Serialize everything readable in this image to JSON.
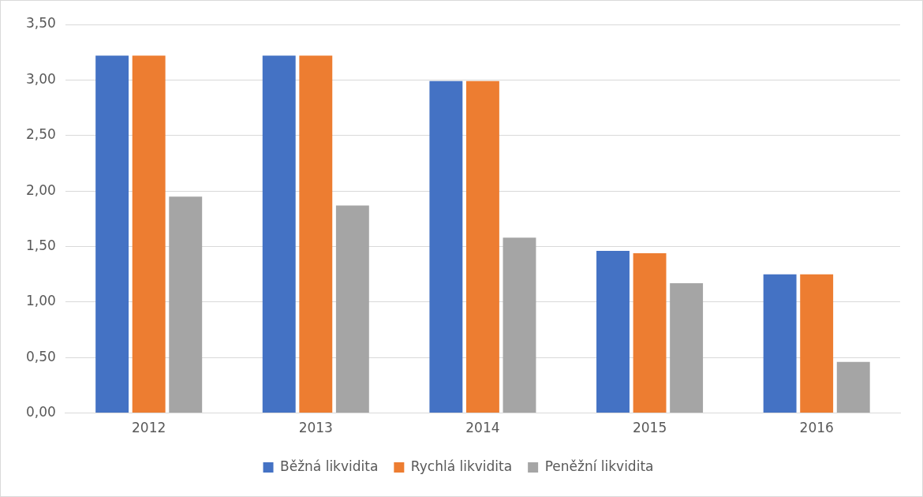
{
  "chart_data": {
    "type": "bar",
    "categories": [
      "2012",
      "2013",
      "2014",
      "2015",
      "2016"
    ],
    "series": [
      {
        "name": "Běžná likvidita",
        "color": "#4472c4",
        "values": [
          3.22,
          3.22,
          2.99,
          1.46,
          1.25
        ]
      },
      {
        "name": "Rychlá likvidita",
        "color": "#ed7d31",
        "values": [
          3.22,
          3.22,
          2.99,
          1.44,
          1.25
        ]
      },
      {
        "name": "Peněžní likvidita",
        "color": "#a5a5a5",
        "values": [
          1.95,
          1.87,
          1.58,
          1.17,
          0.46
        ]
      }
    ],
    "ylim": [
      0,
      3.5
    ],
    "yticks": [
      {
        "value": 0,
        "label": "0,00"
      },
      {
        "value": 0.5,
        "label": "0,50"
      },
      {
        "value": 1,
        "label": "1,00"
      },
      {
        "value": 1.5,
        "label": "1,50"
      },
      {
        "value": 2,
        "label": "2,00"
      },
      {
        "value": 2.5,
        "label": "2,50"
      },
      {
        "value": 3,
        "label": "3,00"
      },
      {
        "value": 3.5,
        "label": "3,50"
      }
    ],
    "grid": "y",
    "legend": "bottom"
  }
}
